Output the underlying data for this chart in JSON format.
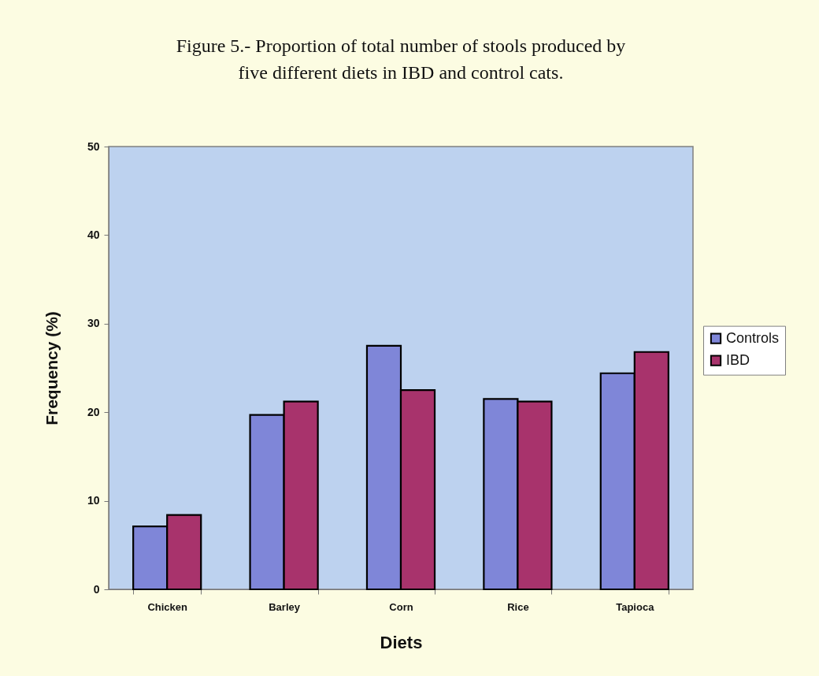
{
  "chart_data": {
    "type": "bar",
    "title": "Figure 5.- Proportion of total number of stools produced by five different diets in IBD and control cats.",
    "xlabel": "Diets",
    "ylabel": "Frequency (%)",
    "categories": [
      "Chicken",
      "Barley",
      "Corn",
      "Rice",
      "Tapioca"
    ],
    "series": [
      {
        "name": "Controls",
        "color": "#7f86d8",
        "values": [
          7.1,
          19.7,
          27.5,
          21.5,
          24.4
        ]
      },
      {
        "name": "IBD",
        "color": "#a8336c",
        "values": [
          8.4,
          21.2,
          22.5,
          21.2,
          26.8
        ]
      }
    ],
    "ylim": [
      0,
      50
    ],
    "yticks": [
      0,
      10,
      20,
      30,
      40,
      50
    ],
    "legend": "right"
  }
}
